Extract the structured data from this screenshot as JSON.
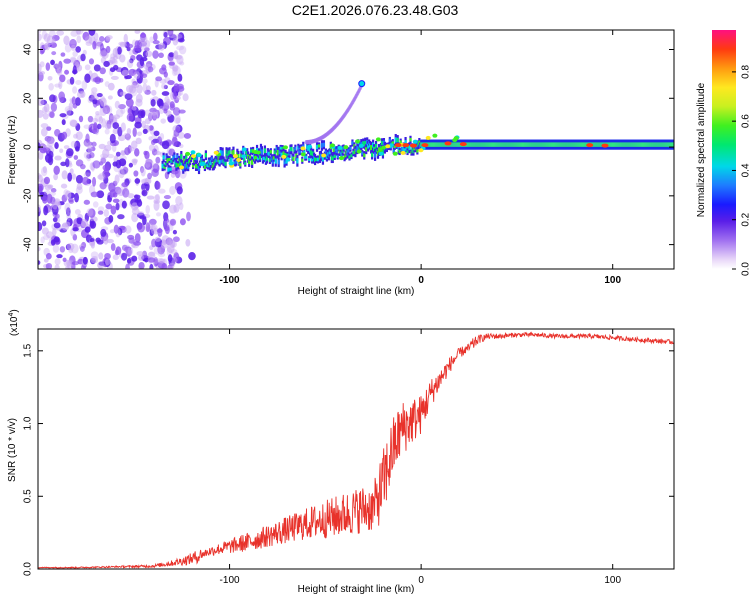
{
  "page": {
    "title": "C2E1.2026.076.23.48.G03"
  },
  "chart_data": [
    {
      "id": "spectrogram",
      "type": "heatmap",
      "xlabel": "Height of straight line (km)",
      "ylabel": "Frequency (Hz)",
      "xlim": [
        -200,
        132
      ],
      "ylim": [
        -50,
        48
      ],
      "x_ticks": [
        -100,
        0,
        100
      ],
      "y_ticks": [
        40,
        20,
        0,
        -20,
        -40
      ],
      "colorbar": {
        "label": "Normalized spectral amplitude",
        "ticks": [
          0.0,
          0.2,
          0.4,
          0.6,
          0.8
        ],
        "range": [
          0,
          0.97
        ],
        "tick_labels": [
          "0.0",
          "0.2",
          "0.4",
          "0.6",
          "0.8"
        ]
      },
      "features": [
        {
          "name": "noise-region",
          "x_range": [
            -200,
            -125
          ],
          "amplitude": "low, scattered"
        },
        {
          "name": "carrier-trace",
          "x_range": [
            -135,
            132
          ],
          "freq_start": -7,
          "freq_end": 1,
          "amplitude_end": 0.45
        },
        {
          "name": "sideband",
          "x_range": [
            -60,
            -30
          ],
          "freq_range": [
            2,
            27
          ]
        }
      ]
    },
    {
      "id": "snr",
      "type": "line",
      "xlabel": "Height of straight line (km)",
      "ylabel": "SNR (10 * v/v)",
      "y_multiplier": "(x10",
      "y_multiplier_exp": "4",
      "y_multiplier_close": ")",
      "xlim": [
        -200,
        132
      ],
      "ylim": [
        0,
        1.65
      ],
      "x_ticks": [
        -100,
        0,
        100
      ],
      "y_ticks": [
        0.0,
        0.5,
        1.0,
        1.5
      ],
      "y_tick_labels": [
        "0.0",
        "0.5",
        "1.0",
        "1.5"
      ],
      "series": [
        {
          "name": "SNR",
          "color": "#e8322b",
          "x": [
            -200,
            -180,
            -160,
            -140,
            -130,
            -120,
            -110,
            -100,
            -90,
            -80,
            -70,
            -60,
            -50,
            -40,
            -30,
            -25,
            -20,
            -15,
            -10,
            -5,
            0,
            5,
            10,
            15,
            20,
            25,
            30,
            35,
            40,
            50,
            60,
            70,
            80,
            90,
            100,
            110,
            120,
            132
          ],
          "values": [
            0.01,
            0.01,
            0.015,
            0.02,
            0.04,
            0.07,
            0.12,
            0.15,
            0.18,
            0.22,
            0.26,
            0.3,
            0.33,
            0.36,
            0.4,
            0.4,
            0.55,
            0.8,
            0.95,
            1.0,
            1.05,
            1.2,
            1.3,
            1.4,
            1.48,
            1.52,
            1.58,
            1.6,
            1.6,
            1.61,
            1.61,
            1.6,
            1.6,
            1.6,
            1.59,
            1.58,
            1.57,
            1.56
          ],
          "noise_amplitude": [
            0.003,
            0.004,
            0.005,
            0.01,
            0.02,
            0.04,
            0.06,
            0.09,
            0.12,
            0.14,
            0.17,
            0.2,
            0.24,
            0.28,
            0.3,
            0.3,
            0.45,
            0.4,
            0.35,
            0.3,
            0.25,
            0.18,
            0.14,
            0.1,
            0.07,
            0.05,
            0.03,
            0.02,
            0.02,
            0.015,
            0.015,
            0.015,
            0.015,
            0.015,
            0.015,
            0.015,
            0.015,
            0.015
          ]
        }
      ]
    }
  ],
  "colors": {
    "line": "#e8322b",
    "axis": "#000000"
  }
}
